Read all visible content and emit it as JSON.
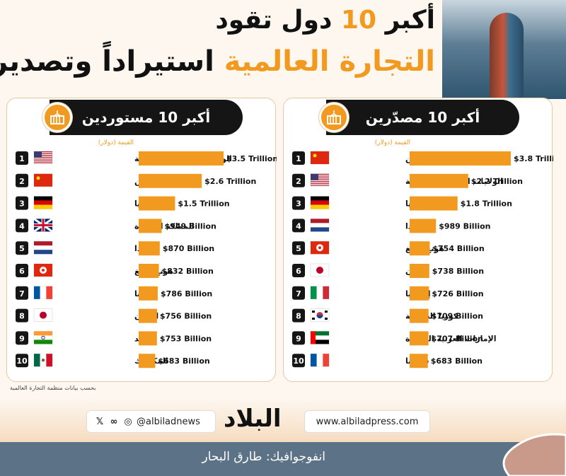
{
  "header": {
    "title_line1_pre": "أكبر",
    "title_line1_num": "10",
    "title_line1_post": "دول تقود",
    "title_line2_hl": "التجارة العالمية",
    "title_line2_post": "استيراداً وتصديراً"
  },
  "colors": {
    "accent": "#f29a1f",
    "dark": "#151515",
    "footer": "#5c7387"
  },
  "chart_data": [
    {
      "type": "bar",
      "title": "أكبر 10 مستوردين",
      "ylabel": "القيمة (دولار)",
      "categories": [
        "الولايات المتحدة الأمريكية",
        "الصين",
        "ألمانيا",
        "المملكة المتحدة",
        "هولندا",
        "هونغ كونغ",
        "فرنسا",
        "اليابان",
        "الهند",
        "المكسيك"
      ],
      "ranks": [
        "1",
        "2",
        "3",
        "4",
        "5",
        "6",
        "7",
        "8",
        "9",
        "10"
      ],
      "flags": [
        "us",
        "cn",
        "de",
        "gb",
        "nl",
        "hk",
        "fr",
        "jp",
        "in",
        "mx"
      ],
      "values": [
        3500,
        2600,
        1500,
        949,
        870,
        832,
        786,
        756,
        753,
        683
      ],
      "value_labels": [
        "$3.5 Trillion",
        "$2.6 Trillion",
        "$1.5 Trillion",
        "$949 Billion",
        "$870 Billion",
        "$832 Billion",
        "$786 Billion",
        "$756 Billion",
        "$753 Billion",
        "$683 Billion"
      ]
    },
    {
      "type": "bar",
      "title": "أكبر 10 مصدّرين",
      "ylabel": "القيمة (دولار)",
      "categories": [
        "الصين",
        "الولايات المتحدة الأمريكية",
        "ألمانيا",
        "هولندا",
        "هونغ كونغ",
        "اليابان",
        "إيطاليا",
        "كوريا الجنوبية",
        "الإمارات العربية المتحدة",
        "فرنسا"
      ],
      "ranks": [
        "1",
        "2",
        "3",
        "4",
        "5",
        "6",
        "7",
        "8",
        "9",
        "10"
      ],
      "flags": [
        "cn",
        "us",
        "de",
        "nl",
        "hk",
        "jp",
        "it",
        "kr",
        "ae",
        "fr"
      ],
      "values": [
        3800,
        2200,
        1800,
        989,
        754,
        738,
        726,
        709,
        707,
        683
      ],
      "value_labels": [
        "$3.8 Trillion",
        "$2.2 Trillion",
        "$1.8 Trillion",
        "$989 Billion",
        "$754 Billion",
        "$738 Billion",
        "$726 Billion",
        "$709 Billion",
        "$707 Billion",
        "$683 Billion"
      ]
    }
  ],
  "footnote": "بحسب بيانات منظمة التجارة العالمية",
  "footer": {
    "handle": "@albiladnews",
    "logo": "البلاد",
    "website": "www.albiladpress.com",
    "credit": "انفوجوافيك: طارق البحار",
    "social_icons": [
      "x-icon",
      "threads-icon",
      "instagram-icon"
    ]
  }
}
